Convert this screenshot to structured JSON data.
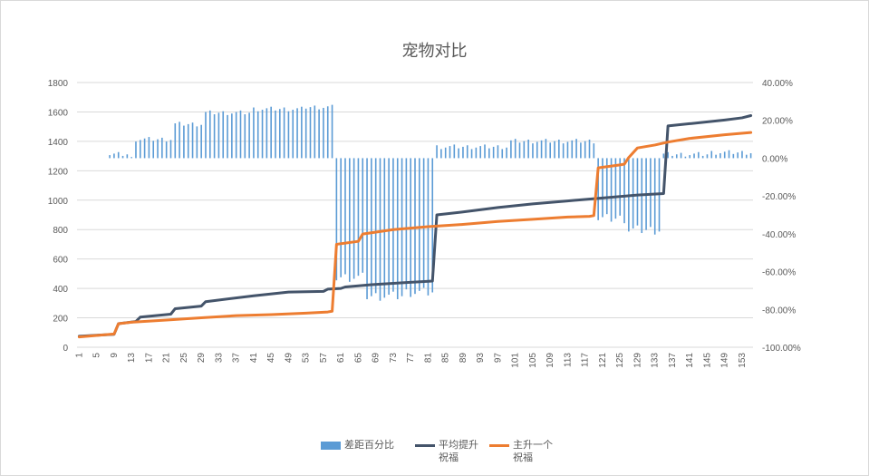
{
  "chart_data": {
    "type": "bar-line-combo",
    "title": "宠物对比",
    "categories_count": 155,
    "x_tick_labels": [
      "1",
      "5",
      "9",
      "13",
      "17",
      "21",
      "25",
      "29",
      "33",
      "37",
      "41",
      "45",
      "49",
      "53",
      "57",
      "61",
      "65",
      "69",
      "73",
      "77",
      "81",
      "85",
      "89",
      "93",
      "97",
      "101",
      "105",
      "109",
      "113",
      "117",
      "121",
      "125",
      "129",
      "133",
      "137",
      "141",
      "145",
      "149",
      "153"
    ],
    "y_left": {
      "min": 0,
      "max": 1800,
      "ticks": [
        "0",
        "200",
        "400",
        "600",
        "800",
        "1000",
        "1200",
        "1400",
        "1600",
        "1800"
      ]
    },
    "y_right": {
      "min": -1.0,
      "max": 0.4,
      "ticks": [
        "-100.00%",
        "-80.00%",
        "-60.00%",
        "-40.00%",
        "-20.00%",
        "0.00%",
        "20.00%",
        "40.00%"
      ]
    },
    "grid": true,
    "legend_position": "bottom",
    "colors": {
      "bar": "#5b9bd5",
      "avg": "#44546a",
      "main": "#ed7d31",
      "grid": "#d9d9d9",
      "text": "#595959"
    },
    "series": [
      {
        "name": "差距百分比",
        "type": "bar",
        "axis": "right",
        "segments": [
          {
            "from": 8,
            "to": 12,
            "value": 0.02
          },
          {
            "from": 13,
            "to": 13,
            "value": -0.01
          },
          {
            "from": 14,
            "to": 22,
            "value": 0.1
          },
          {
            "from": 23,
            "to": 29,
            "value": 0.18
          },
          {
            "from": 30,
            "to": 40,
            "value": 0.24
          },
          {
            "from": 41,
            "to": 52,
            "value": 0.26
          },
          {
            "from": 53,
            "to": 59,
            "value": 0.27
          },
          {
            "from": 60,
            "to": 66,
            "value": -0.63
          },
          {
            "from": 67,
            "to": 75,
            "value": -0.73
          },
          {
            "from": 76,
            "to": 82,
            "value": -0.71
          },
          {
            "from": 83,
            "to": 99,
            "value": 0.06
          },
          {
            "from": 100,
            "to": 119,
            "value": 0.09
          },
          {
            "from": 120,
            "to": 126,
            "value": -0.32
          },
          {
            "from": 127,
            "to": 134,
            "value": -0.38
          },
          {
            "from": 135,
            "to": 145,
            "value": 0.02
          },
          {
            "from": 146,
            "to": 155,
            "value": 0.03
          }
        ]
      },
      {
        "name": "平均提升祝福",
        "type": "line",
        "axis": "left",
        "points": [
          [
            1,
            75
          ],
          [
            5,
            82
          ],
          [
            9,
            88
          ],
          [
            10,
            160
          ],
          [
            14,
            175
          ],
          [
            15,
            205
          ],
          [
            22,
            225
          ],
          [
            23,
            262
          ],
          [
            29,
            280
          ],
          [
            30,
            310
          ],
          [
            41,
            350
          ],
          [
            49,
            375
          ],
          [
            57,
            380
          ],
          [
            58,
            395
          ],
          [
            61,
            400
          ],
          [
            62,
            410
          ],
          [
            68,
            425
          ],
          [
            76,
            440
          ],
          [
            82,
            450
          ],
          [
            83,
            900
          ],
          [
            89,
            920
          ],
          [
            97,
            950
          ],
          [
            105,
            975
          ],
          [
            113,
            995
          ],
          [
            121,
            1015
          ],
          [
            129,
            1035
          ],
          [
            135,
            1045
          ],
          [
            136,
            1505
          ],
          [
            141,
            1520
          ],
          [
            149,
            1545
          ],
          [
            153,
            1560
          ],
          [
            155,
            1575
          ]
        ]
      },
      {
        "name": "主升一个祝福",
        "type": "line",
        "axis": "left",
        "points": [
          [
            1,
            70
          ],
          [
            5,
            80
          ],
          [
            9,
            90
          ],
          [
            10,
            160
          ],
          [
            13,
            170
          ],
          [
            21,
            185
          ],
          [
            29,
            200
          ],
          [
            37,
            215
          ],
          [
            45,
            222
          ],
          [
            53,
            232
          ],
          [
            58,
            240
          ],
          [
            59,
            245
          ],
          [
            60,
            700
          ],
          [
            65,
            720
          ],
          [
            66,
            770
          ],
          [
            73,
            800
          ],
          [
            81,
            820
          ],
          [
            89,
            835
          ],
          [
            97,
            855
          ],
          [
            105,
            870
          ],
          [
            113,
            885
          ],
          [
            118,
            890
          ],
          [
            119,
            895
          ],
          [
            120,
            1220
          ],
          [
            125,
            1240
          ],
          [
            126,
            1245
          ],
          [
            127,
            1290
          ],
          [
            129,
            1355
          ],
          [
            133,
            1375
          ],
          [
            136,
            1395
          ],
          [
            141,
            1420
          ],
          [
            149,
            1445
          ],
          [
            155,
            1460
          ]
        ]
      }
    ]
  }
}
